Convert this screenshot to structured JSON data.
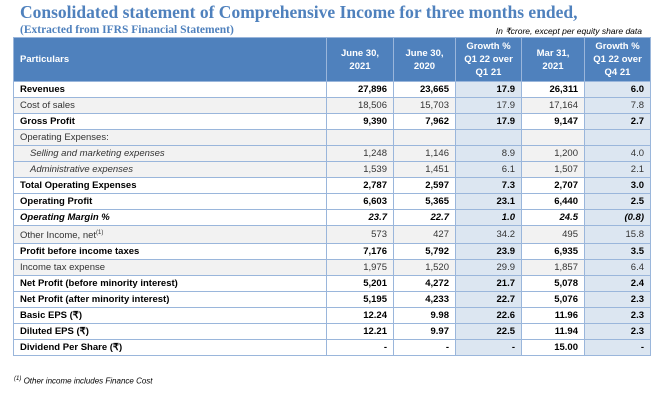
{
  "title": "Consolidated statement of Comprehensive Income for three months ended,",
  "subtitle": "(Extracted from IFRS Financial Statement)",
  "unit_note": "In ₹crore, except per equity share data",
  "headers": [
    "Particulars",
    "June 30, 2021",
    "June 30, 2020",
    "Growth % Q1 22 over Q1 21",
    "Mar 31, 2021",
    "Growth % Q1 22 over Q4 21"
  ],
  "rows": [
    {
      "label": "Revenues",
      "style": "bold",
      "values": [
        "27,896",
        "23,665",
        "17.9",
        "26,311",
        "6.0"
      ]
    },
    {
      "label": "Cost of sales",
      "style": "gray",
      "values": [
        "18,506",
        "15,703",
        "17.9",
        "17,164",
        "7.8"
      ]
    },
    {
      "label": "Gross Profit",
      "style": "bold",
      "values": [
        "9,390",
        "7,962",
        "17.9",
        "9,147",
        "2.7"
      ]
    },
    {
      "label": "Operating Expenses:",
      "style": "gray",
      "values": [
        "",
        "",
        "",
        "",
        ""
      ]
    },
    {
      "label": "Selling and marketing expenses",
      "style": "gray indent",
      "values": [
        "1,248",
        "1,146",
        "8.9",
        "1,200",
        "4.0"
      ]
    },
    {
      "label": "Administrative expenses",
      "style": "gray indent",
      "values": [
        "1,539",
        "1,451",
        "6.1",
        "1,507",
        "2.1"
      ]
    },
    {
      "label": "Total Operating Expenses",
      "style": "bold",
      "values": [
        "2,787",
        "2,597",
        "7.3",
        "2,707",
        "3.0"
      ]
    },
    {
      "label": "Operating Profit",
      "style": "bold",
      "values": [
        "6,603",
        "5,365",
        "23.1",
        "6,440",
        "2.5"
      ]
    },
    {
      "label": "Operating Margin %",
      "style": "ital",
      "values": [
        "23.7",
        "22.7",
        "1.0",
        "24.5",
        "(0.8)"
      ]
    },
    {
      "label": "Other Income, net",
      "sup": "(1)",
      "style": "gray",
      "values": [
        "573",
        "427",
        "34.2",
        "495",
        "15.8"
      ]
    },
    {
      "label": "Profit before income taxes",
      "style": "bold",
      "values": [
        "7,176",
        "5,792",
        "23.9",
        "6,935",
        "3.5"
      ]
    },
    {
      "label": "Income tax expense",
      "style": "gray",
      "values": [
        "1,975",
        "1,520",
        "29.9",
        "1,857",
        "6.4"
      ]
    },
    {
      "label": "Net Profit (before minority interest)",
      "style": "bold",
      "values": [
        "5,201",
        "4,272",
        "21.7",
        "5,078",
        "2.4"
      ]
    },
    {
      "label": "Net Profit (after minority interest)",
      "style": "bold",
      "values": [
        "5,195",
        "4,233",
        "22.7",
        "5,076",
        "2.3"
      ]
    },
    {
      "label": "Basic EPS (₹)",
      "style": "bold",
      "values": [
        "12.24",
        "9.98",
        "22.6",
        "11.96",
        "2.3"
      ]
    },
    {
      "label": "Diluted EPS (₹)",
      "style": "bold",
      "values": [
        "12.21",
        "9.97",
        "22.5",
        "11.94",
        "2.3"
      ]
    },
    {
      "label": "Dividend Per Share (₹)",
      "style": "bold",
      "values": [
        "-",
        "-",
        "-",
        "15.00",
        "-"
      ]
    }
  ],
  "footnote_marker": "(1)",
  "footnote": "Other income includes Finance Cost",
  "colors": {
    "header": "#4f81bd",
    "growth_col": "#dce6f1",
    "gray_row": "#f2f2f2",
    "border": "#9ab6db"
  }
}
